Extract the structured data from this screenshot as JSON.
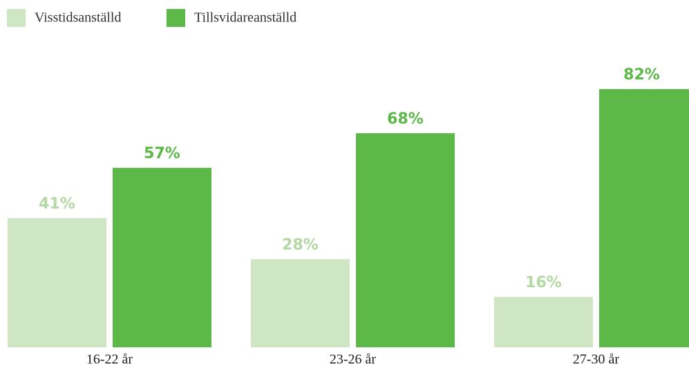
{
  "chart_data": {
    "type": "bar",
    "categories": [
      "16-22 år",
      "23-26 år",
      "27-30 år"
    ],
    "series": [
      {
        "name": "Visstidsanställd",
        "color": "#cfe6c5",
        "label_color": "#b3d8a3",
        "values": [
          41,
          28,
          16
        ],
        "value_labels": [
          "41%",
          "28%",
          "16%"
        ]
      },
      {
        "name": "Tillsvidareanställd",
        "color": "#5cb947",
        "label_color": "#5cb947",
        "values": [
          57,
          68,
          82
        ],
        "value_labels": [
          "57%",
          "68%",
          "82%"
        ]
      }
    ],
    "legend": "top-left"
  }
}
